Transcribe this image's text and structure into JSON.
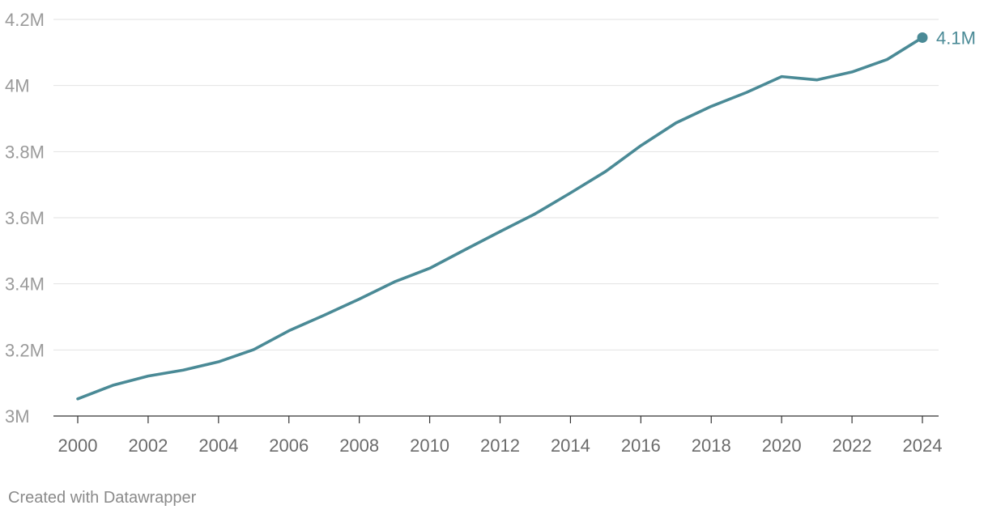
{
  "chart_data": {
    "type": "line",
    "x": [
      2000,
      2001,
      2002,
      2003,
      2004,
      2005,
      2006,
      2007,
      2008,
      2009,
      2010,
      2011,
      2012,
      2013,
      2014,
      2015,
      2016,
      2017,
      2018,
      2019,
      2020,
      2021,
      2022,
      2023,
      2024
    ],
    "series": [
      {
        "values": [
          3.052,
          3.093,
          3.121,
          3.139,
          3.164,
          3.201,
          3.258,
          3.305,
          3.354,
          3.406,
          3.447,
          3.503,
          3.558,
          3.612,
          3.675,
          3.74,
          3.818,
          3.887,
          3.937,
          3.979,
          4.027,
          4.017,
          4.041,
          4.079,
          4.145
        ],
        "color": "#4a8a96"
      }
    ],
    "ylim": [
      3.0,
      4.2
    ],
    "yticks": [
      3.0,
      3.2,
      3.4,
      3.6,
      3.8,
      4.0,
      4.2
    ],
    "ytick_labels": [
      "3M",
      "3.2M",
      "3.4M",
      "3.6M",
      "3.8M",
      "4M",
      "4.2M"
    ],
    "xticks": [
      2000,
      2002,
      2004,
      2006,
      2008,
      2010,
      2012,
      2014,
      2016,
      2018,
      2020,
      2022,
      2024
    ],
    "xtick_labels": [
      "2000",
      "2002",
      "2004",
      "2006",
      "2008",
      "2010",
      "2012",
      "2014",
      "2016",
      "2018",
      "2020",
      "2022",
      "2024"
    ],
    "end_label": "4.1M",
    "grid": true
  },
  "credit": "Created with Datawrapper"
}
